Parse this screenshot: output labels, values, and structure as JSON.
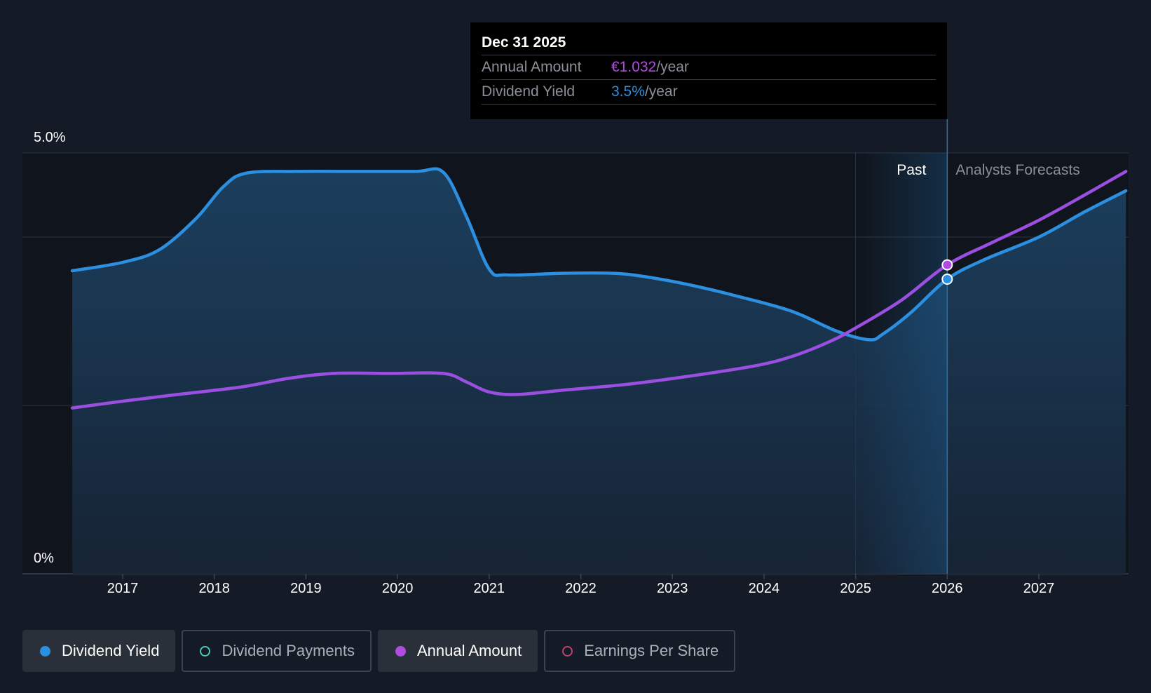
{
  "chart_data": {
    "type": "area",
    "y_axis": {
      "min_label": "0%",
      "max_label": "5.0%",
      "min": 0,
      "max": 5.0,
      "gridlines": [
        0,
        2.0,
        4.0,
        5.0
      ]
    },
    "x_axis": {
      "ticks": [
        "2017",
        "2018",
        "2019",
        "2020",
        "2021",
        "2022",
        "2023",
        "2024",
        "2025",
        "2026",
        "2027"
      ],
      "range": [
        2016.45,
        2027.95
      ]
    },
    "regions": {
      "past_label": "Past",
      "forecast_label": "Analysts Forecasts",
      "forecast_start": 2026.0,
      "shade_start": 2025.0
    },
    "series": [
      {
        "name": "Dividend Yield",
        "color": "#2d8fe0",
        "filled": true,
        "points": [
          [
            2016.45,
            3.6
          ],
          [
            2017.0,
            3.7
          ],
          [
            2017.4,
            3.85
          ],
          [
            2017.8,
            4.22
          ],
          [
            2018.1,
            4.6
          ],
          [
            2018.35,
            4.76
          ],
          [
            2018.9,
            4.78
          ],
          [
            2019.6,
            4.78
          ],
          [
            2020.2,
            4.78
          ],
          [
            2020.5,
            4.77
          ],
          [
            2020.75,
            4.25
          ],
          [
            2021.0,
            3.62
          ],
          [
            2021.2,
            3.55
          ],
          [
            2021.8,
            3.57
          ],
          [
            2022.35,
            3.57
          ],
          [
            2022.7,
            3.53
          ],
          [
            2023.2,
            3.43
          ],
          [
            2023.7,
            3.3
          ],
          [
            2024.3,
            3.12
          ],
          [
            2024.8,
            2.88
          ],
          [
            2025.15,
            2.78
          ],
          [
            2025.3,
            2.85
          ],
          [
            2025.6,
            3.1
          ],
          [
            2026.0,
            3.5
          ],
          [
            2026.4,
            3.73
          ],
          [
            2027.0,
            4.0
          ],
          [
            2027.5,
            4.3
          ],
          [
            2027.95,
            4.55
          ]
        ]
      },
      {
        "name": "Annual Amount",
        "color": "#9b4fe0",
        "filled": false,
        "points": [
          [
            2016.45,
            1.97
          ],
          [
            2017.0,
            2.05
          ],
          [
            2017.6,
            2.13
          ],
          [
            2018.3,
            2.22
          ],
          [
            2018.8,
            2.32
          ],
          [
            2019.3,
            2.38
          ],
          [
            2019.9,
            2.38
          ],
          [
            2020.5,
            2.38
          ],
          [
            2020.75,
            2.28
          ],
          [
            2021.0,
            2.16
          ],
          [
            2021.3,
            2.13
          ],
          [
            2021.8,
            2.18
          ],
          [
            2022.5,
            2.25
          ],
          [
            2023.2,
            2.35
          ],
          [
            2023.9,
            2.47
          ],
          [
            2024.3,
            2.58
          ],
          [
            2024.7,
            2.75
          ],
          [
            2025.0,
            2.92
          ],
          [
            2025.5,
            3.25
          ],
          [
            2026.0,
            3.67
          ],
          [
            2026.5,
            3.94
          ],
          [
            2027.0,
            4.2
          ],
          [
            2027.5,
            4.5
          ],
          [
            2027.95,
            4.78
          ]
        ]
      }
    ],
    "markers": [
      {
        "series": "Annual Amount",
        "x": 2026.0,
        "y": 3.67,
        "color": "#b04ce0"
      },
      {
        "series": "Dividend Yield",
        "x": 2026.0,
        "y": 3.5,
        "color": "#2d8fe0"
      }
    ]
  },
  "tooltip": {
    "date": "Dec 31 2025",
    "rows": [
      {
        "label": "Annual Amount",
        "value": "€1.032",
        "unit": "/year"
      },
      {
        "label": "Dividend Yield",
        "value": "3.5%",
        "unit": "/year"
      }
    ]
  },
  "legend": [
    {
      "label": "Dividend Yield",
      "active": true,
      "color": "#2d8fe0",
      "filled": true
    },
    {
      "label": "Dividend Payments",
      "active": false,
      "color": "#4cc5b8",
      "filled": false
    },
    {
      "label": "Annual Amount",
      "active": true,
      "color": "#b04ce0",
      "filled": true
    },
    {
      "label": "Earnings Per Share",
      "active": false,
      "color": "#c0406e",
      "filled": false
    }
  ]
}
